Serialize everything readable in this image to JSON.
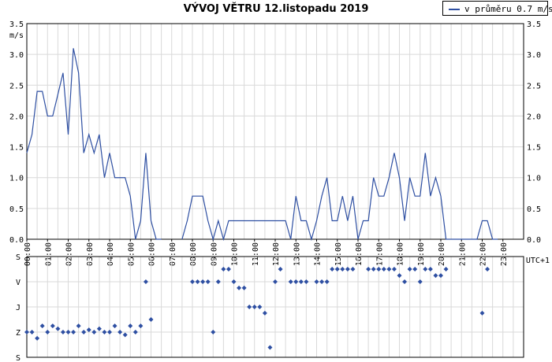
{
  "title": "VÝVOJ VĚTRU  12.listopadu 2019",
  "legend": {
    "label": "v průměru 0.7 m/s",
    "color": "#2e4fa2"
  },
  "colors": {
    "line": "#2e4fa2",
    "marker": "#2e4fa2",
    "grid": "#d9d9d9",
    "axis": "#000000"
  },
  "chart_data": [
    {
      "type": "line",
      "name": "speed",
      "ylabel": "m/s",
      "xlabel": "UTC+1",
      "ylim": [
        0,
        3.5
      ],
      "xlim": [
        0,
        24
      ],
      "y_ticks": [
        "0.0",
        "0.5",
        "1.0",
        "1.5",
        "2.0",
        "2.5",
        "3.0",
        "3.5"
      ],
      "x_ticks": [
        "00:00",
        "01:00",
        "02:00",
        "03:00",
        "04:00",
        "05:00",
        "06:00",
        "07:00",
        "08:00",
        "09:00",
        "10:00",
        "11:00",
        "12:00",
        "13:00",
        "14:00",
        "15:00",
        "16:00",
        "17:00",
        "18:00",
        "19:00",
        "20:00",
        "21:00",
        "22:00",
        "23:00"
      ],
      "grid": true,
      "series": [
        {
          "label": "v průměru 0.7 m/s",
          "segments": [
            {
              "x": [
                0,
                0.25,
                0.5,
                0.75,
                1,
                1.25,
                1.5,
                1.75,
                2,
                2.25,
                2.5,
                2.75,
                3,
                3.25,
                3.5,
                3.75,
                4,
                4.25,
                4.5,
                4.75,
                5,
                5.25,
                5.5,
                5.75,
                6,
                6.25,
                6.5
              ],
              "y": [
                1.4,
                1.7,
                2.4,
                2.4,
                2.0,
                2.0,
                2.35,
                2.7,
                1.7,
                3.1,
                2.7,
                1.4,
                1.7,
                1.4,
                1.7,
                1.0,
                1.4,
                1.0,
                1.0,
                1.0,
                0.7,
                0.0,
                0.3,
                1.4,
                0.3,
                0.0,
                0.0
              ]
            },
            {
              "x": [
                7.5,
                7.75,
                8,
                8.25,
                8.5,
                8.75,
                9,
                9.25,
                9.5,
                9.75,
                10,
                10.25,
                10.5,
                10.75,
                11,
                11.25,
                11.5,
                11.75,
                12,
                12.25,
                12.5,
                12.75,
                13,
                13.25,
                13.5,
                13.75,
                14,
                14.25,
                14.5,
                14.75,
                15,
                15.25,
                15.5,
                15.75,
                16,
                16.25,
                16.5,
                16.75,
                17,
                17.25,
                17.5,
                17.75,
                18,
                18.25,
                18.5,
                18.75,
                19,
                19.25,
                19.5,
                19.75,
                20,
                20.25,
                20.5,
                20.75,
                21,
                21.25,
                21.5,
                21.75,
                22,
                22.25,
                22.5,
                22.75
              ],
              "y": [
                0.0,
                0.3,
                0.7,
                0.7,
                0.7,
                0.3,
                0.0,
                0.3,
                0.0,
                0.3,
                0.3,
                0.3,
                0.3,
                0.3,
                0.3,
                0.3,
                0.3,
                0.3,
                0.3,
                0.3,
                0.3,
                0.0,
                0.7,
                0.3,
                0.3,
                0.0,
                0.3,
                0.7,
                1.0,
                0.3,
                0.3,
                0.7,
                0.3,
                0.7,
                0.0,
                0.3,
                0.3,
                1.0,
                0.7,
                0.7,
                1.0,
                1.4,
                1.0,
                0.3,
                1.0,
                0.7,
                0.7,
                1.4,
                0.7,
                1.0,
                0.7,
                0.0,
                0.0,
                0.0,
                0.0,
                0.0,
                0.0,
                0.0,
                0.3,
                0.3,
                0.0,
                0.0
              ]
            }
          ]
        }
      ]
    },
    {
      "type": "scatter",
      "name": "direction",
      "xlabel": "",
      "ylabel": "",
      "xlim": [
        0,
        24
      ],
      "y_categories": [
        "S",
        "V",
        "J",
        "Z",
        "S"
      ],
      "ylim": [
        0,
        360
      ],
      "grid": true,
      "x": [
        0,
        0.25,
        0.5,
        0.75,
        1,
        1.25,
        1.5,
        1.75,
        2,
        2.25,
        2.5,
        2.75,
        3,
        3.25,
        3.5,
        3.75,
        4,
        4.25,
        4.5,
        4.75,
        5,
        5.25,
        5.5,
        5.75,
        6,
        8,
        8.25,
        8.5,
        8.75,
        9,
        9.25,
        9.5,
        9.75,
        10,
        10.25,
        10.5,
        10.75,
        11,
        11.25,
        11.5,
        11.75,
        12,
        12.25,
        12.75,
        13,
        13.25,
        13.5,
        14,
        14.25,
        14.5,
        14.75,
        15,
        15.25,
        15.5,
        15.75,
        16.5,
        16.75,
        17,
        17.25,
        17.5,
        17.75,
        18,
        18.25,
        18.5,
        18.75,
        19,
        19.25,
        19.5,
        19.75,
        20,
        20.25,
        22,
        22.25
      ],
      "y": [
        270,
        270,
        292,
        248,
        270,
        248,
        258,
        270,
        270,
        270,
        248,
        270,
        262,
        270,
        258,
        270,
        270,
        248,
        270,
        280,
        248,
        270,
        248,
        90,
        225,
        90,
        90,
        90,
        90,
        270,
        90,
        45,
        45,
        90,
        112,
        112,
        180,
        180,
        180,
        202,
        325,
        90,
        45,
        90,
        90,
        90,
        90,
        90,
        90,
        90,
        45,
        45,
        45,
        45,
        45,
        45,
        45,
        45,
        45,
        45,
        45,
        68,
        90,
        45,
        45,
        90,
        45,
        45,
        68,
        68,
        45,
        202,
        45
      ]
    }
  ]
}
